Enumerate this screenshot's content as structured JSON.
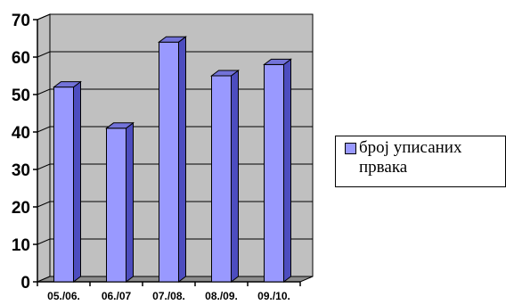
{
  "chart_data": {
    "type": "bar",
    "categories": [
      "05./06.",
      "06./07",
      "07./08.",
      "08./09.",
      "09./10."
    ],
    "series": [
      {
        "name": "број уписаних првака",
        "values": [
          52,
          41,
          64,
          55,
          58
        ]
      }
    ],
    "ylim": [
      0,
      70
    ],
    "yticks": [
      "0",
      "10",
      "20",
      "30",
      "40",
      "50",
      "60",
      "70"
    ],
    "grid": true,
    "legend_position": "right",
    "colors": {
      "bar_front": "#9999ff",
      "bar_side": "#4d4dbf",
      "bar_top": "#7373d9",
      "wall": "#c0c0c0",
      "floor": "#8c8c8c"
    }
  }
}
